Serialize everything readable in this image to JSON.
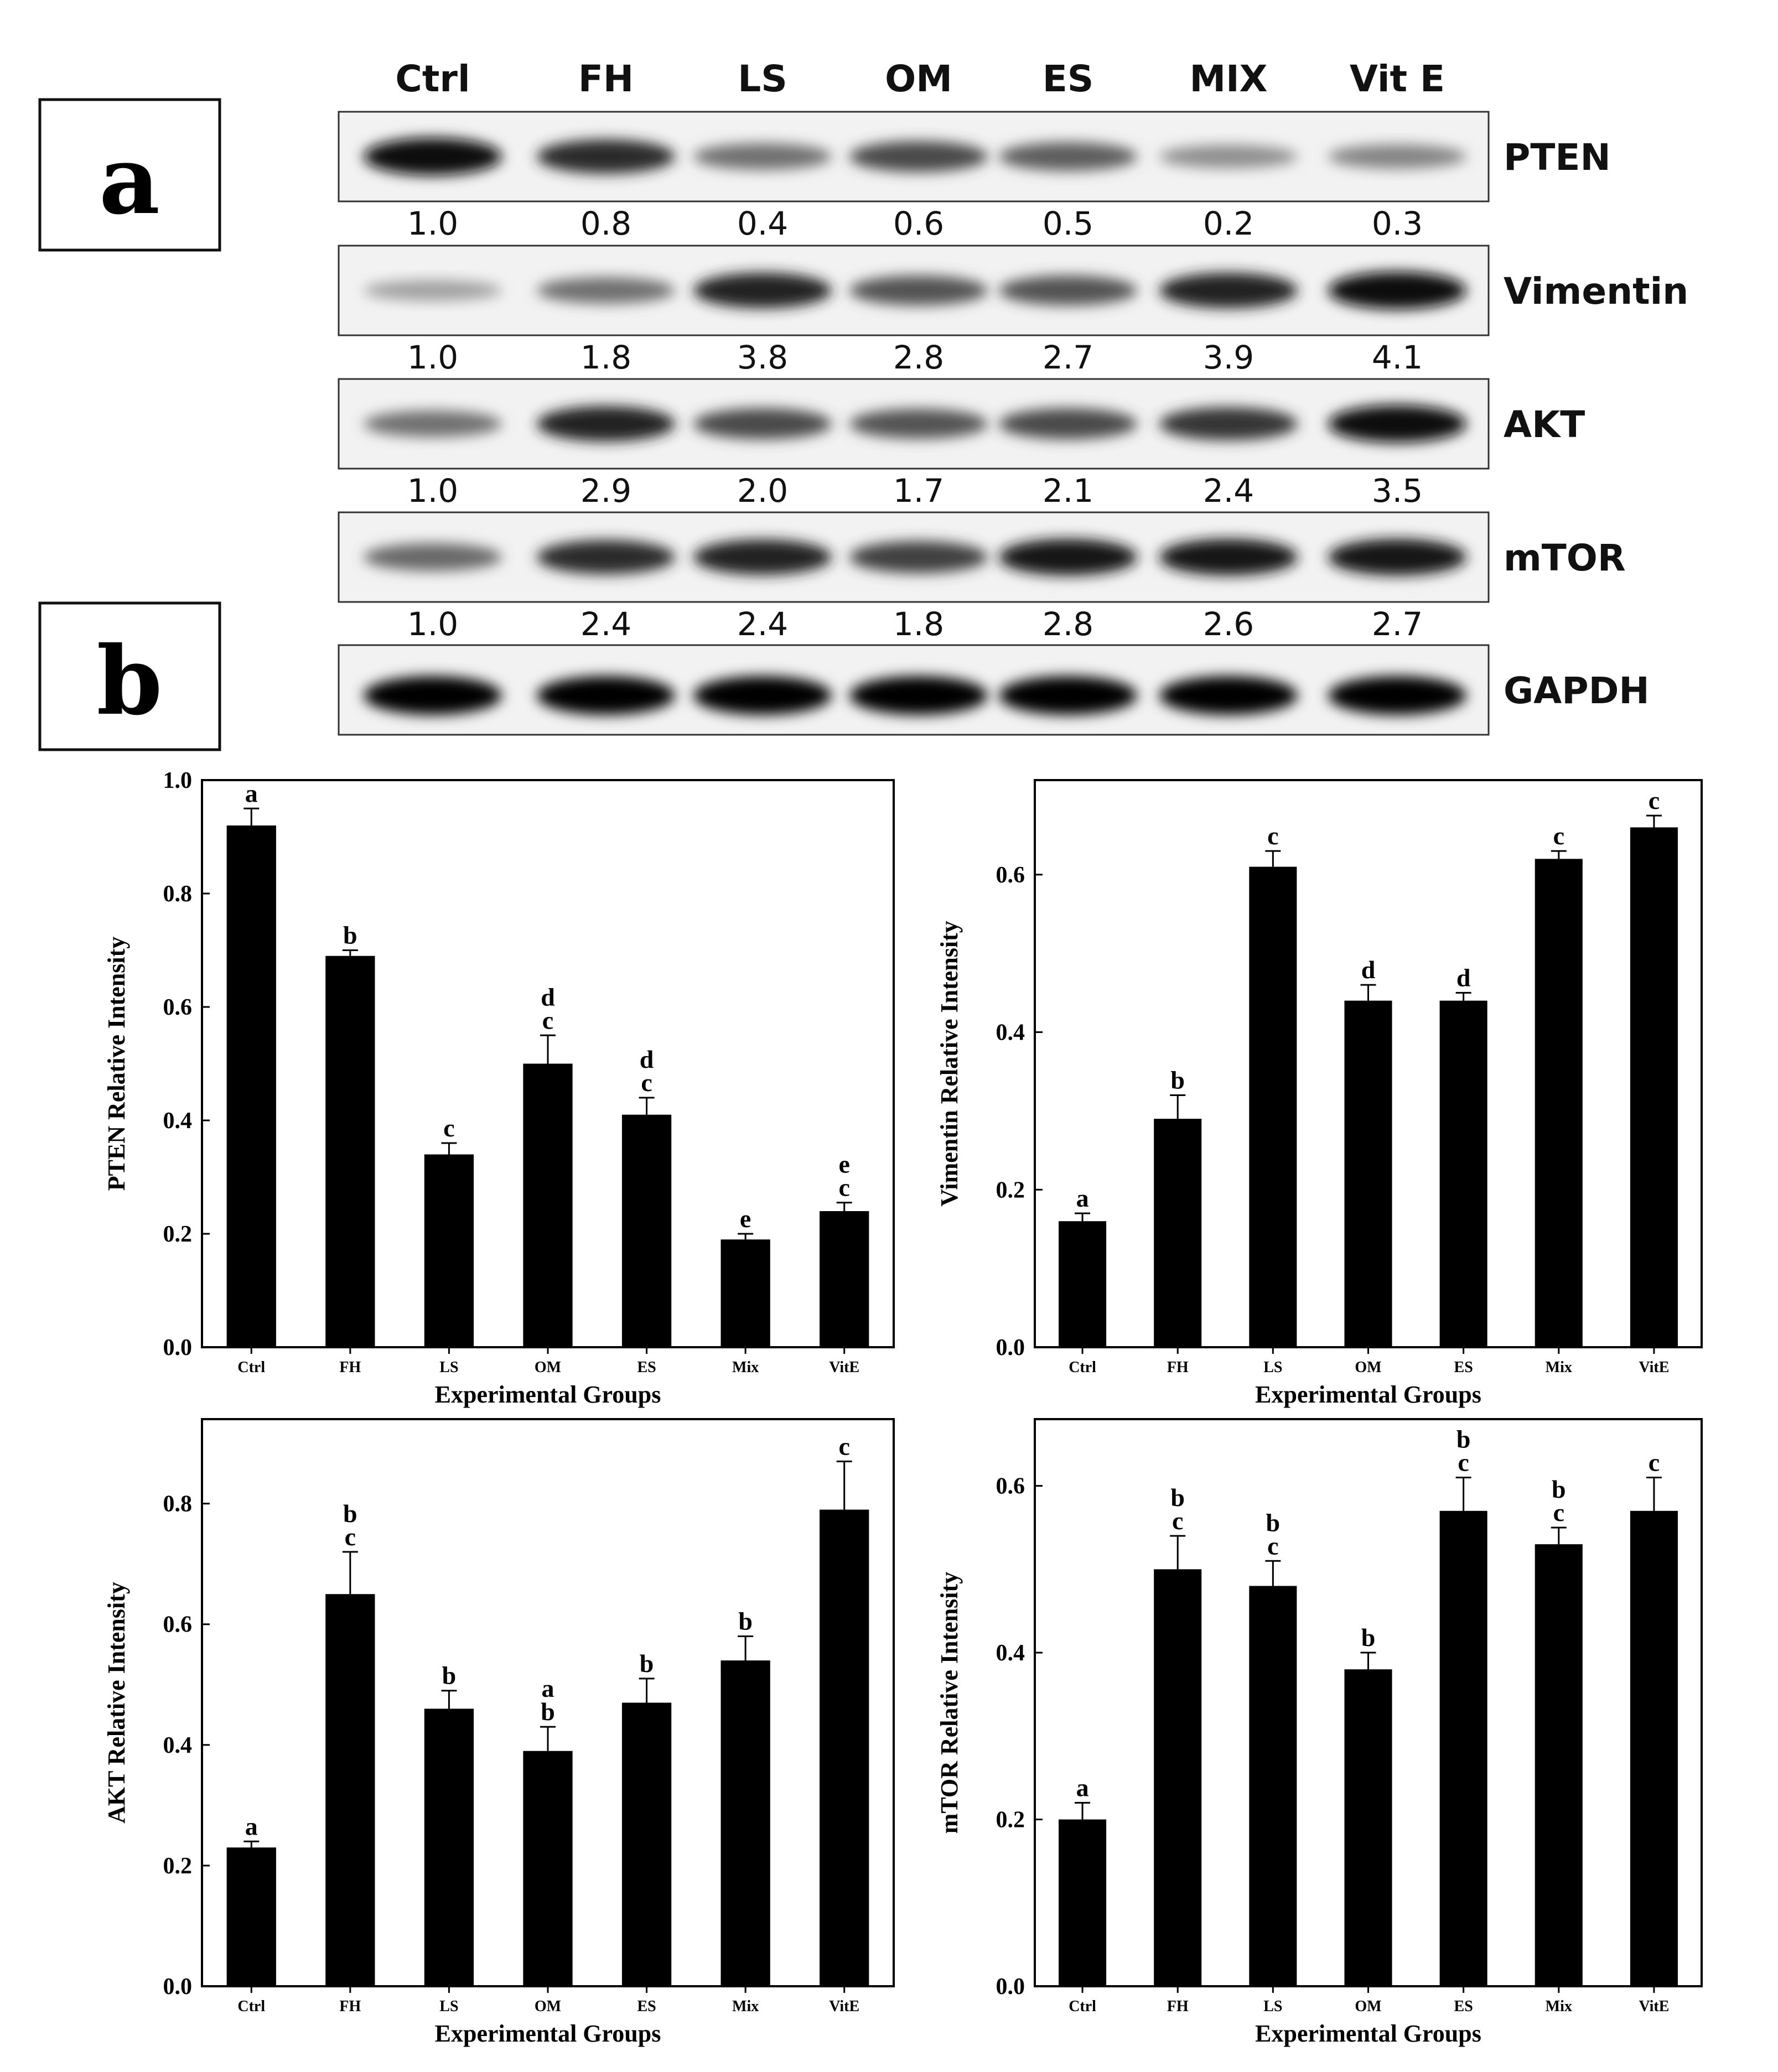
{
  "panels": {
    "a": "a",
    "b": "b"
  },
  "blot": {
    "lanes": [
      "Ctrl",
      "FH",
      "LS",
      "OM",
      "ES",
      "MIX",
      "Vit E"
    ],
    "rows": [
      {
        "protein": "PTEN",
        "values": [
          "1.0",
          "0.8",
          "0.4",
          "0.6",
          "0.5",
          "0.2",
          "0.3"
        ],
        "intensity": [
          0.95,
          0.8,
          0.45,
          0.65,
          0.55,
          0.3,
          0.35
        ]
      },
      {
        "protein": "Vimentin",
        "values": [
          "1.0",
          "1.8",
          "3.8",
          "2.8",
          "2.7",
          "3.9",
          "4.1"
        ],
        "intensity": [
          0.2,
          0.45,
          0.85,
          0.6,
          0.6,
          0.85,
          0.95
        ]
      },
      {
        "protein": "AKT",
        "values": [
          "1.0",
          "2.9",
          "2.0",
          "1.7",
          "2.1",
          "2.4",
          "3.5"
        ],
        "intensity": [
          0.45,
          0.85,
          0.65,
          0.6,
          0.65,
          0.75,
          0.95
        ]
      },
      {
        "protein": "mTOR",
        "values": [
          "1.0",
          "2.4",
          "2.4",
          "1.8",
          "2.8",
          "2.6",
          "2.7"
        ],
        "intensity": [
          0.5,
          0.8,
          0.85,
          0.7,
          0.9,
          0.9,
          0.9
        ]
      },
      {
        "protein": "GAPDH",
        "values": [],
        "intensity": [
          1,
          1,
          1,
          1,
          1,
          1,
          1
        ]
      }
    ]
  },
  "chart_data": [
    {
      "type": "bar",
      "categories": [
        "Ctrl",
        "FH",
        "LS",
        "OM",
        "ES",
        "Mix",
        "VitE"
      ],
      "values": [
        0.92,
        0.69,
        0.34,
        0.5,
        0.41,
        0.19,
        0.24
      ],
      "errors": [
        0.03,
        0.01,
        0.02,
        0.05,
        0.03,
        0.01,
        0.015
      ],
      "significance": [
        "a",
        "b",
        "c",
        "d\nc",
        "d\nc",
        "e",
        "e\nc"
      ],
      "xlabel": "Experimental Groups",
      "ylabel": "PTEN Relative Intensity",
      "ylim": [
        0,
        1.0
      ],
      "yticks": [
        "0.0",
        "0.2",
        "0.4",
        "0.6",
        "0.8",
        "1.0"
      ]
    },
    {
      "type": "bar",
      "categories": [
        "Ctrl",
        "FH",
        "LS",
        "OM",
        "ES",
        "Mix",
        "VitE"
      ],
      "values": [
        0.16,
        0.29,
        0.61,
        0.44,
        0.44,
        0.62,
        0.66
      ],
      "errors": [
        0.01,
        0.03,
        0.02,
        0.02,
        0.01,
        0.01,
        0.015
      ],
      "significance": [
        "a",
        "b",
        "c",
        "d",
        "d",
        "c",
        "c"
      ],
      "xlabel": "Experimental Groups",
      "ylabel": "Vimentin Relative Intensity",
      "ylim": [
        0,
        0.72
      ],
      "yticks": [
        "0.0",
        "0.2",
        "0.4",
        "0.6"
      ]
    },
    {
      "type": "bar",
      "categories": [
        "Ctrl",
        "FH",
        "LS",
        "OM",
        "ES",
        "Mix",
        "VitE"
      ],
      "values": [
        0.23,
        0.65,
        0.46,
        0.39,
        0.47,
        0.54,
        0.79
      ],
      "errors": [
        0.01,
        0.07,
        0.03,
        0.04,
        0.04,
        0.04,
        0.08
      ],
      "significance": [
        "a",
        "b\nc",
        "b",
        "a\nb",
        "b",
        "b",
        "c"
      ],
      "xlabel": "Experimental Groups",
      "ylabel": "AKT Relative Intensity",
      "ylim": [
        0,
        0.94
      ],
      "yticks": [
        "0.0",
        "0.2",
        "0.4",
        "0.6",
        "0.8"
      ]
    },
    {
      "type": "bar",
      "categories": [
        "Ctrl",
        "FH",
        "LS",
        "OM",
        "ES",
        "Mix",
        "VitE"
      ],
      "values": [
        0.2,
        0.5,
        0.48,
        0.38,
        0.57,
        0.53,
        0.57
      ],
      "errors": [
        0.02,
        0.04,
        0.03,
        0.02,
        0.04,
        0.02,
        0.04
      ],
      "significance": [
        "a",
        "b\nc",
        "b\nc",
        "b",
        "b\nc",
        "b\nc",
        "c"
      ],
      "xlabel": "Experimental Groups",
      "ylabel": "mTOR Relative Intensity",
      "ylim": [
        0,
        0.68
      ],
      "yticks": [
        "0.0",
        "0.2",
        "0.4",
        "0.6"
      ]
    }
  ]
}
